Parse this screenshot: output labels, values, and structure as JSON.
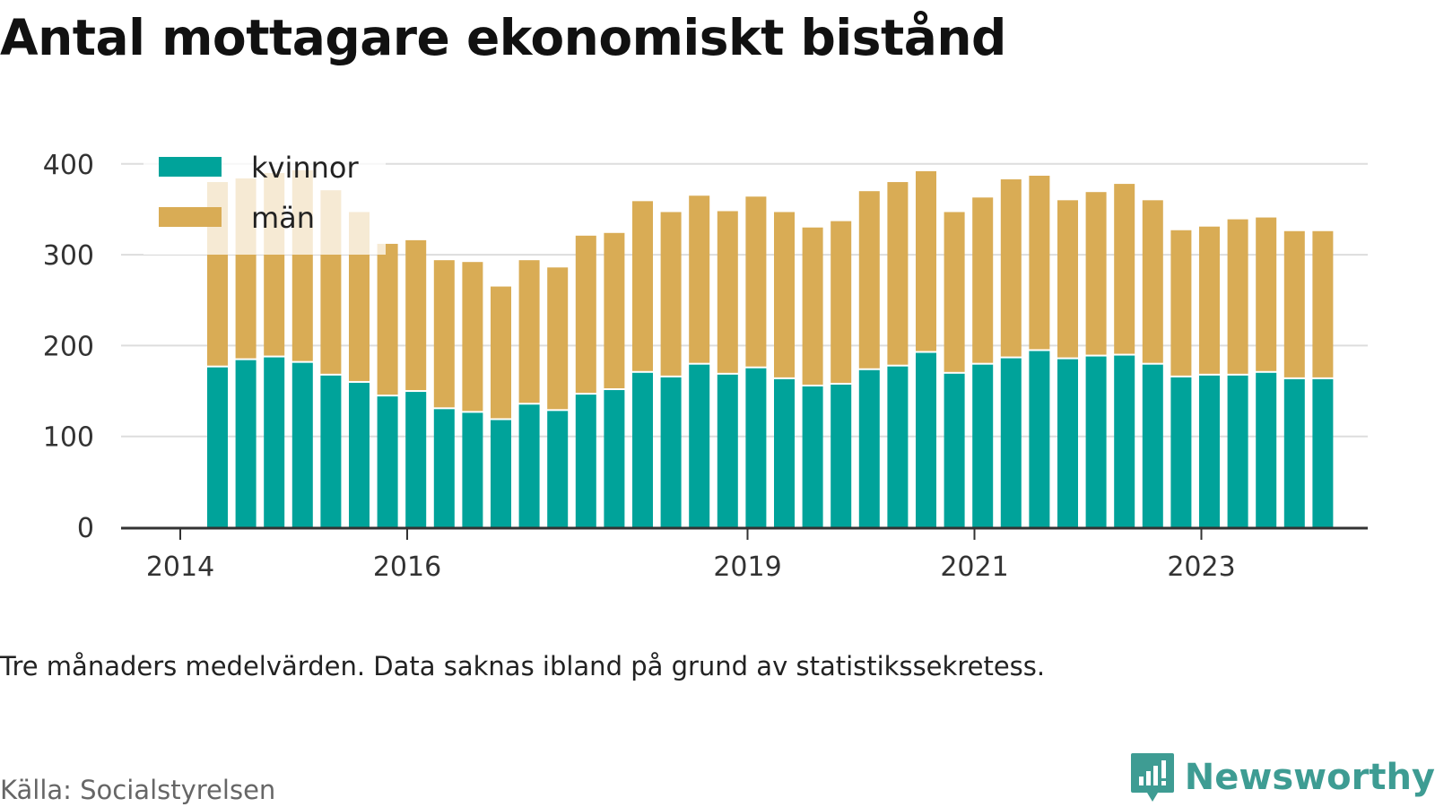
{
  "title": "Antal mottagare ekonomiskt bistånd",
  "note": "Tre månaders medelvärden. Data saknas ibland på grund av statistikssekretess.",
  "source": "Källa: Socialstyrelsen",
  "brand": {
    "name": "Newsworthy",
    "icon": "newsworthy-logo-icon",
    "color": "#3e9c93"
  },
  "colors": {
    "kvinnor": "#00a39a",
    "man": "#d9ac55",
    "grid": "#dddddd",
    "axis": "#333333"
  },
  "chart_data": {
    "type": "bar",
    "stacked": true,
    "x": [
      "2014-07",
      "2014-10",
      "2015-01",
      "2015-04",
      "2015-07",
      "2015-10",
      "2016-01",
      "2016-04",
      "2016-07",
      "2016-10",
      "2017-01",
      "2017-04",
      "2017-07",
      "2017-10",
      "2018-01",
      "2018-04",
      "2018-07",
      "2018-10",
      "2019-01",
      "2019-04",
      "2019-07",
      "2019-10",
      "2020-01",
      "2020-04",
      "2020-07",
      "2020-10",
      "2021-01",
      "2021-04",
      "2021-07",
      "2021-10",
      "2022-01",
      "2022-04",
      "2022-07",
      "2022-10",
      "2023-01",
      "2023-04",
      "2023-07",
      "2023-10",
      "2024-01",
      "2024-04"
    ],
    "series": [
      {
        "name": "kvinnor",
        "values": [
          176,
          184,
          187,
          181,
          167,
          159,
          144,
          149,
          130,
          126,
          118,
          135,
          128,
          146,
          151,
          170,
          165,
          179,
          168,
          175,
          163,
          155,
          157,
          173,
          177,
          192,
          169,
          179,
          186,
          194,
          185,
          188,
          189,
          179,
          165,
          167,
          167,
          170,
          163,
          163
        ]
      },
      {
        "name": "män",
        "values": [
          204,
          200,
          203,
          212,
          204,
          188,
          168,
          167,
          164,
          166,
          147,
          159,
          158,
          175,
          173,
          189,
          182,
          186,
          180,
          189,
          184,
          175,
          180,
          197,
          203,
          200,
          178,
          184,
          197,
          193,
          175,
          181,
          189,
          181,
          162,
          164,
          172,
          171,
          163,
          163
        ]
      }
    ],
    "xticks": [
      "2014",
      "2016",
      "2019",
      "2021",
      "2023"
    ],
    "yticks": [
      0,
      100,
      200,
      300,
      400
    ],
    "ylim": [
      0,
      420
    ],
    "legend_position": "top-left",
    "grid": true
  }
}
